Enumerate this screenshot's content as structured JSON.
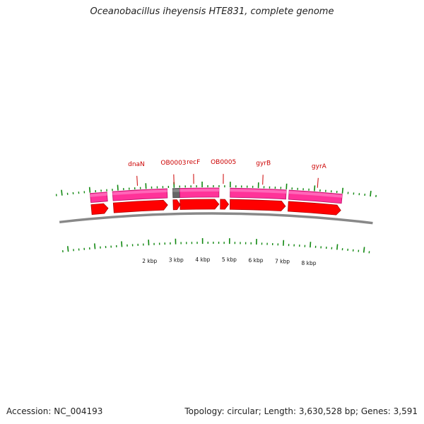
{
  "title": "Oceanobacillus iheyensis HTE831, complete genome",
  "footer": {
    "accession": "Accession: NC_004193",
    "summary": "Topology: circular; Length: 3,630,528 bp; Genes: 3,591"
  },
  "colors": {
    "cds_fill": "#ff0000",
    "cds_edge": "#b00000",
    "rna_fill": "#ff3399",
    "rna_edge": "#c0106a",
    "gray_feature": "#666666",
    "backbone": "#888888",
    "tick": "#118811",
    "label": "#cc0000"
  },
  "view": {
    "start_bp": 0,
    "end_bp": 8700,
    "unit": "bp"
  },
  "gene_labels": [
    {
      "name": "dnaN",
      "pos_bp": 1700
    },
    {
      "name": "OB0003",
      "pos_bp": 3000
    },
    {
      "name": "recF",
      "pos_bp": 3700
    },
    {
      "name": "OB0005",
      "pos_bp": 4750
    },
    {
      "name": "gyrB",
      "pos_bp": 6150
    },
    {
      "name": "gyrA",
      "pos_bp": 8100
    }
  ],
  "outer_track": [
    {
      "start_bp": 0,
      "end_bp": 600,
      "kind": "rna"
    },
    {
      "start_bp": 800,
      "end_bp": 2750,
      "kind": "rna"
    },
    {
      "start_bp": 2950,
      "end_bp": 3200,
      "kind": "gray"
    },
    {
      "start_bp": 3200,
      "end_bp": 4600,
      "kind": "rna"
    },
    {
      "start_bp": 5000,
      "end_bp": 7000,
      "kind": "rna"
    },
    {
      "start_bp": 7100,
      "end_bp": 9000,
      "kind": "rna"
    }
  ],
  "inner_track": [
    {
      "start_bp": 0,
      "end_bp": 600,
      "kind": "cds"
    },
    {
      "start_bp": 800,
      "end_bp": 2750,
      "kind": "cds"
    },
    {
      "start_bp": 2950,
      "end_bp": 3200,
      "kind": "cds"
    },
    {
      "start_bp": 3200,
      "end_bp": 4600,
      "kind": "cds"
    },
    {
      "start_bp": 4650,
      "end_bp": 4950,
      "kind": "cds"
    },
    {
      "start_bp": 5000,
      "end_bp": 7000,
      "kind": "cds"
    },
    {
      "start_bp": 7100,
      "end_bp": 9000,
      "kind": "cds"
    }
  ],
  "kbp_labels": [
    {
      "text": "2 kbp",
      "pos_bp": 2000
    },
    {
      "text": "3 kbp",
      "pos_bp": 3000
    },
    {
      "text": "4 kbp",
      "pos_bp": 4000
    },
    {
      "text": "5 kbp",
      "pos_bp": 5000
    },
    {
      "text": "6 kbp",
      "pos_bp": 6000
    },
    {
      "text": "7 kbp",
      "pos_bp": 7000
    },
    {
      "text": "8 kbp",
      "pos_bp": 8000
    }
  ],
  "tick_interval_bp": 200
}
